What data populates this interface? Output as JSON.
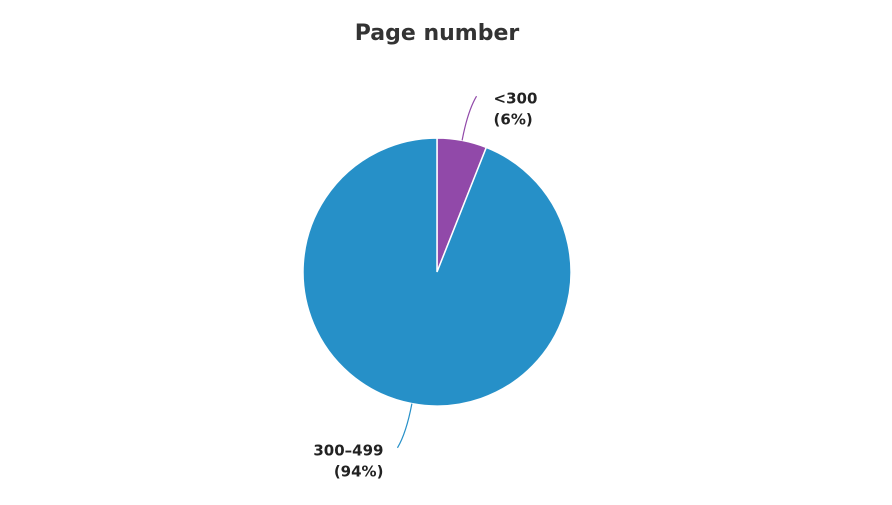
{
  "chart_data": {
    "type": "pie",
    "title": "Page number",
    "categories": [
      "<300",
      "300–499"
    ],
    "values": [
      6,
      94
    ],
    "value_labels": [
      "(6%)",
      "(94%)"
    ],
    "colors": [
      "#9149a9",
      "#2690c8"
    ]
  }
}
